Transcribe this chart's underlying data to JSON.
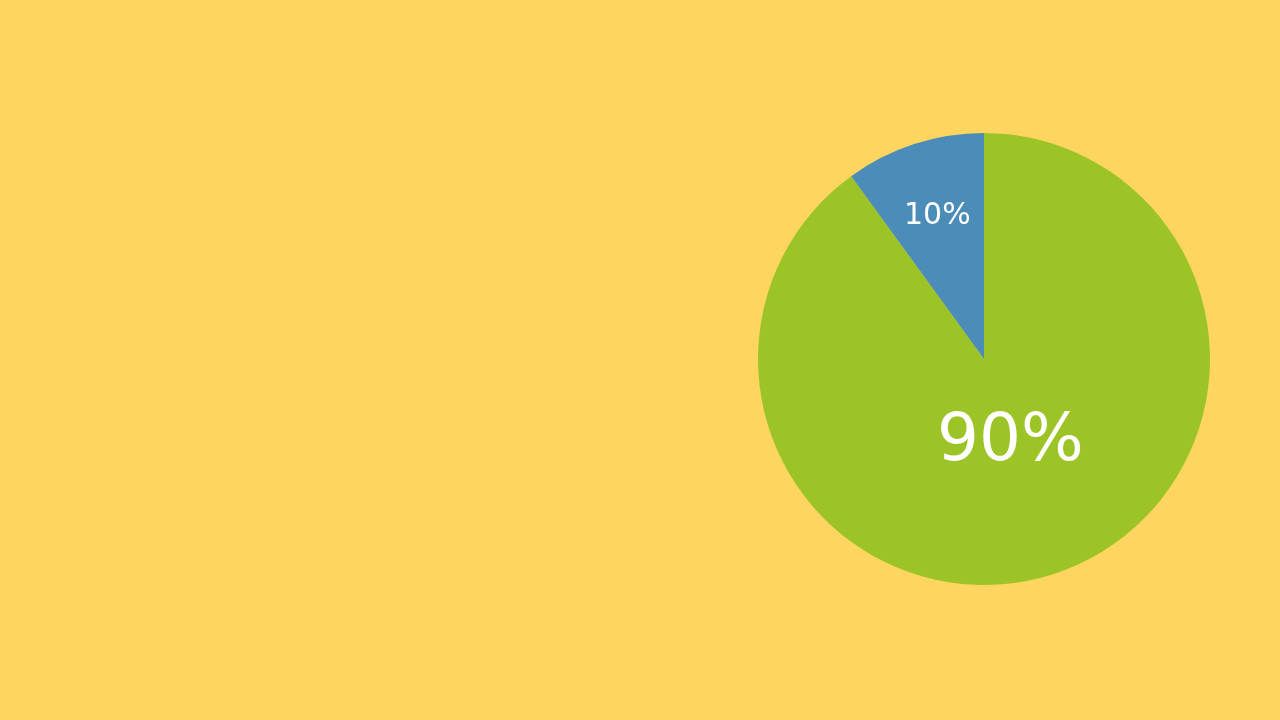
{
  "chart_data": {
    "type": "pie",
    "categories": [
      null,
      null
    ],
    "values": [
      90,
      10
    ],
    "colors": [
      "#9dc427",
      "#4b8db8"
    ],
    "value_labels": [
      "90%",
      "10%"
    ]
  }
}
